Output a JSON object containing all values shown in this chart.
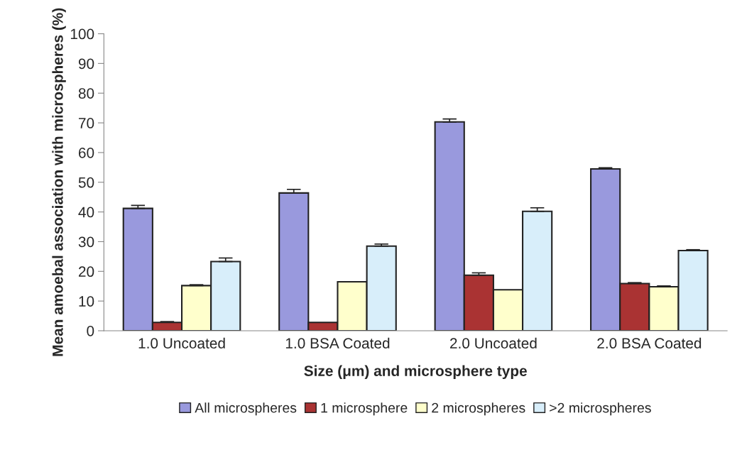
{
  "chart_data": {
    "type": "bar",
    "xlabel": "Size (μm) and microsphere type",
    "ylabel": "Mean amoebal association with microspheres (%)",
    "categories": [
      "1.0 Uncoated",
      "1.0 BSA Coated",
      "2.0 Uncoated",
      "2.0 BSA Coated"
    ],
    "series": [
      {
        "name": "All microspheres",
        "color": "#9999dd",
        "values": [
          41.2,
          46.4,
          70.3,
          54.5
        ],
        "errors": [
          [
            41.2,
            42.2
          ],
          [
            46.4,
            47.6
          ],
          [
            70.3,
            71.3
          ],
          [
            54.5,
            54.9
          ]
        ]
      },
      {
        "name": "1 microsphere",
        "color": "#aa3333",
        "values": [
          2.8,
          2.8,
          18.7,
          15.9
        ],
        "errors": [
          [
            2.8,
            3.1
          ],
          null,
          [
            18.7,
            19.5
          ],
          [
            15.9,
            16.2
          ]
        ]
      },
      {
        "name": "2 microspheres",
        "color": "#ffffcc",
        "values": [
          15.2,
          16.5,
          13.8,
          14.8
        ],
        "errors": [
          [
            15.2,
            15.5
          ],
          null,
          null,
          [
            14.8,
            15.1
          ]
        ]
      },
      {
        "name": ">2 microspheres",
        "color": "#d8eefa",
        "values": [
          23.3,
          28.5,
          40.2,
          27.0
        ],
        "errors": [
          [
            23.3,
            24.5
          ],
          [
            28.5,
            29.2
          ],
          [
            40.2,
            41.4
          ],
          [
            27.0,
            27.3
          ]
        ]
      }
    ],
    "ylim": [
      0,
      100
    ],
    "yticks": [
      0,
      10,
      20,
      30,
      40,
      50,
      60,
      70,
      80,
      90,
      100
    ],
    "grid": false,
    "legend": "bottom"
  }
}
